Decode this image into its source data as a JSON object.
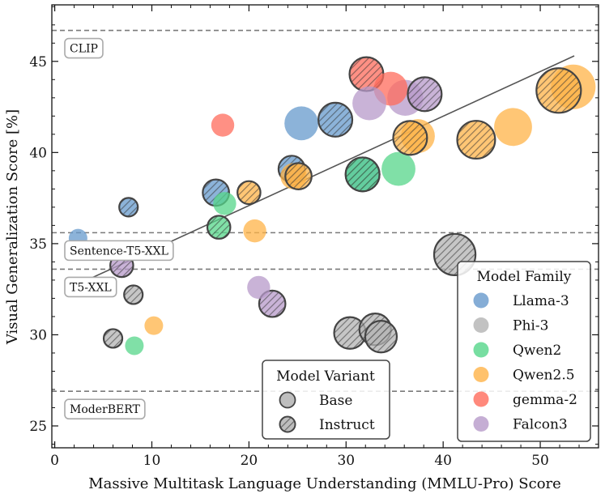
{
  "chart_data": {
    "type": "scatter",
    "xlabel": "Massive Multitask Language Understanding (MMLU-Pro) Score",
    "ylabel": "Visual Generalization Score [%]",
    "xlim": [
      -0.3,
      56
    ],
    "ylim": [
      23.8,
      48.1
    ],
    "xticks": [
      0,
      10,
      20,
      30,
      40,
      50
    ],
    "yticks": [
      25,
      30,
      35,
      40,
      45
    ],
    "reference_lines": [
      {
        "name": "CLIP",
        "y": 46.7
      },
      {
        "name": "Sentence-T5-XXL",
        "y": 35.6
      },
      {
        "name": "T5-XXL",
        "y": 33.6
      },
      {
        "name": "ModerBERT",
        "y": 26.9
      }
    ],
    "trend_line": {
      "x": [
        2.5,
        53.5
      ],
      "y": [
        32.8,
        45.3
      ]
    },
    "families": [
      {
        "name": "Llama-3",
        "color": "#6699cc"
      },
      {
        "name": "Phi-3",
        "color": "#b3b3b3"
      },
      {
        "name": "Qwen2",
        "color": "#55d68a"
      },
      {
        "name": "Qwen2.5",
        "color": "#ffb347"
      },
      {
        "name": "gemma-2",
        "color": "#ff6b5b"
      },
      {
        "name": "Falcon3",
        "color": "#b79ac9"
      }
    ],
    "variants": [
      {
        "name": "Base",
        "hatched": false
      },
      {
        "name": "Instruct",
        "hatched": true
      }
    ],
    "points": [
      {
        "family": "Llama-3",
        "variant": "Base",
        "x": 2.4,
        "y": 35.3,
        "size": 1
      },
      {
        "family": "Llama-3",
        "variant": "Instruct",
        "x": 7.6,
        "y": 37.0,
        "size": 1
      },
      {
        "family": "Llama-3",
        "variant": "Instruct",
        "x": 16.6,
        "y": 37.8,
        "size": 3
      },
      {
        "family": "Llama-3",
        "variant": "Instruct",
        "x": 24.4,
        "y": 39.1,
        "size": 3
      },
      {
        "family": "Llama-3",
        "variant": "Base",
        "x": 25.4,
        "y": 41.6,
        "size": 6
      },
      {
        "family": "Llama-3",
        "variant": "Instruct",
        "x": 28.9,
        "y": 41.8,
        "size": 6
      },
      {
        "family": "Llama-3",
        "variant": "Instruct",
        "x": 31.7,
        "y": 38.8,
        "size": 6
      },
      {
        "family": "Phi-3",
        "variant": "Instruct",
        "x": 6.0,
        "y": 29.8,
        "size": 1
      },
      {
        "family": "Phi-3",
        "variant": "Instruct",
        "x": 8.1,
        "y": 32.2,
        "size": 1
      },
      {
        "family": "Phi-3",
        "variant": "Instruct",
        "x": 30.4,
        "y": 30.1,
        "size": 5
      },
      {
        "family": "Phi-3",
        "variant": "Instruct",
        "x": 33.0,
        "y": 30.3,
        "size": 5
      },
      {
        "family": "Phi-3",
        "variant": "Instruct",
        "x": 33.6,
        "y": 29.9,
        "size": 5
      },
      {
        "family": "Phi-3",
        "variant": "Instruct",
        "x": 41.2,
        "y": 34.4,
        "size": 10
      },
      {
        "family": "Qwen2",
        "variant": "Base",
        "x": 8.2,
        "y": 29.4,
        "size": 1
      },
      {
        "family": "Qwen2",
        "variant": "Instruct",
        "x": 16.9,
        "y": 35.9,
        "size": 2
      },
      {
        "family": "Qwen2",
        "variant": "Base",
        "x": 17.5,
        "y": 37.2,
        "size": 2
      },
      {
        "family": "Qwen2",
        "variant": "Instruct",
        "x": 31.7,
        "y": 38.8,
        "size": 6
      },
      {
        "family": "Qwen2",
        "variant": "Base",
        "x": 35.4,
        "y": 39.1,
        "size": 6
      },
      {
        "family": "Qwen2.5",
        "variant": "Base",
        "x": 10.2,
        "y": 30.5,
        "size": 1
      },
      {
        "family": "Qwen2.5",
        "variant": "Instruct",
        "x": 20.0,
        "y": 37.8,
        "size": 2
      },
      {
        "family": "Qwen2.5",
        "variant": "Base",
        "x": 20.6,
        "y": 35.7,
        "size": 2
      },
      {
        "family": "Qwen2.5",
        "variant": "Base",
        "x": 24.6,
        "y": 38.7,
        "size": 3
      },
      {
        "family": "Qwen2.5",
        "variant": "Instruct",
        "x": 25.1,
        "y": 38.7,
        "size": 3
      },
      {
        "family": "Qwen2.5",
        "variant": "Base",
        "x": 37.4,
        "y": 40.9,
        "size": 6
      },
      {
        "family": "Qwen2.5",
        "variant": "Instruct",
        "x": 36.6,
        "y": 40.8,
        "size": 6
      },
      {
        "family": "Qwen2.5",
        "variant": "Instruct",
        "x": 43.4,
        "y": 40.7,
        "size": 8
      },
      {
        "family": "Qwen2.5",
        "variant": "Base",
        "x": 47.2,
        "y": 41.4,
        "size": 8
      },
      {
        "family": "Qwen2.5",
        "variant": "Base",
        "x": 53.4,
        "y": 43.6,
        "size": 12
      },
      {
        "family": "Qwen2.5",
        "variant": "Instruct",
        "x": 51.9,
        "y": 43.4,
        "size": 12
      },
      {
        "family": "gemma-2",
        "variant": "Base",
        "x": 17.3,
        "y": 41.5,
        "size": 2
      },
      {
        "family": "gemma-2",
        "variant": "Instruct",
        "x": 32.1,
        "y": 44.3,
        "size": 6
      },
      {
        "family": "gemma-2",
        "variant": "Base",
        "x": 34.6,
        "y": 43.5,
        "size": 6
      },
      {
        "family": "Falcon3",
        "variant": "Instruct",
        "x": 6.9,
        "y": 33.8,
        "size": 2
      },
      {
        "family": "Falcon3",
        "variant": "Base",
        "x": 21.0,
        "y": 32.6,
        "size": 2
      },
      {
        "family": "Falcon3",
        "variant": "Instruct",
        "x": 22.4,
        "y": 31.7,
        "size": 3
      },
      {
        "family": "Falcon3",
        "variant": "Base",
        "x": 32.4,
        "y": 42.7,
        "size": 6
      },
      {
        "family": "Falcon3",
        "variant": "Base",
        "x": 36.1,
        "y": 43.0,
        "size": 7
      },
      {
        "family": "Falcon3",
        "variant": "Instruct",
        "x": 38.1,
        "y": 43.2,
        "size": 6
      }
    ],
    "legend_family": {
      "title": "Model Family",
      "placement": "lower-right"
    },
    "legend_variant": {
      "title": "Model Variant",
      "placement": "lower-center"
    }
  }
}
